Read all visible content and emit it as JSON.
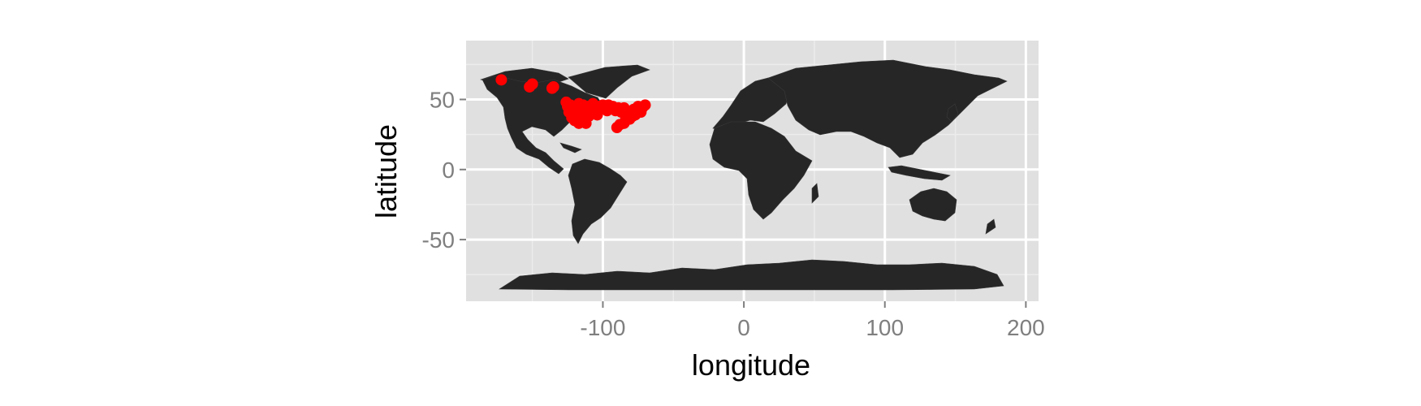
{
  "chart_data": {
    "type": "scatter",
    "title": "",
    "xlabel": "longitude",
    "ylabel": "latitude",
    "xlim": [
      -197,
      209
    ],
    "ylim": [
      -94,
      92
    ],
    "x_ticks": [
      {
        "value": -100,
        "label": "-100"
      },
      {
        "value": 0,
        "label": "0"
      },
      {
        "value": 100,
        "label": "100"
      },
      {
        "value": 200,
        "label": "200"
      }
    ],
    "y_ticks": [
      {
        "value": 50,
        "label": "50"
      },
      {
        "value": 0,
        "label": "0"
      },
      {
        "value": -50,
        "label": "-50"
      }
    ],
    "grid": true,
    "colors": {
      "panel": "#e0e0e0",
      "grid_major": "#ffffff",
      "grid_minor": "#ececec",
      "land": "#262626",
      "points": "#ff0000"
    },
    "point_color": "#ff0000",
    "points": [
      {
        "x": -172,
        "y": 64
      },
      {
        "x": -152,
        "y": 59
      },
      {
        "x": -150,
        "y": 61
      },
      {
        "x": -136,
        "y": 58
      },
      {
        "x": -135,
        "y": 59
      },
      {
        "x": -126,
        "y": 48
      },
      {
        "x": -125,
        "y": 45
      },
      {
        "x": -124,
        "y": 41
      },
      {
        "x": -124,
        "y": 43
      },
      {
        "x": -123,
        "y": 46
      },
      {
        "x": -122,
        "y": 37
      },
      {
        "x": -122,
        "y": 39
      },
      {
        "x": -121,
        "y": 44
      },
      {
        "x": -120,
        "y": 35
      },
      {
        "x": -119,
        "y": 40
      },
      {
        "x": -118,
        "y": 34
      },
      {
        "x": -117,
        "y": 47
      },
      {
        "x": -117,
        "y": 33
      },
      {
        "x": -116,
        "y": 43
      },
      {
        "x": -115,
        "y": 37
      },
      {
        "x": -114,
        "y": 46
      },
      {
        "x": -112,
        "y": 41
      },
      {
        "x": -112,
        "y": 33
      },
      {
        "x": -111,
        "y": 45
      },
      {
        "x": -110,
        "y": 38
      },
      {
        "x": -109,
        "y": 42
      },
      {
        "x": -107,
        "y": 47
      },
      {
        "x": -106,
        "y": 40
      },
      {
        "x": -105,
        "y": 44
      },
      {
        "x": -104,
        "y": 39
      },
      {
        "x": -103,
        "y": 45
      },
      {
        "x": -100,
        "y": 46
      },
      {
        "x": -97,
        "y": 42
      },
      {
        "x": -96,
        "y": 46
      },
      {
        "x": -94,
        "y": 44
      },
      {
        "x": -93,
        "y": 45
      },
      {
        "x": -91,
        "y": 42
      },
      {
        "x": -90,
        "y": 30
      },
      {
        "x": -89,
        "y": 44
      },
      {
        "x": -88,
        "y": 32
      },
      {
        "x": -87,
        "y": 41
      },
      {
        "x": -85,
        "y": 33
      },
      {
        "x": -85,
        "y": 44
      },
      {
        "x": -84,
        "y": 35
      },
      {
        "x": -83,
        "y": 42
      },
      {
        "x": -81,
        "y": 36
      },
      {
        "x": -80,
        "y": 40
      },
      {
        "x": -79,
        "y": 38
      },
      {
        "x": -78,
        "y": 43
      },
      {
        "x": -77,
        "y": 39
      },
      {
        "x": -76,
        "y": 42
      },
      {
        "x": -75,
        "y": 45
      },
      {
        "x": -73,
        "y": 41
      },
      {
        "x": -72,
        "y": 44
      },
      {
        "x": -70,
        "y": 46
      }
    ]
  }
}
